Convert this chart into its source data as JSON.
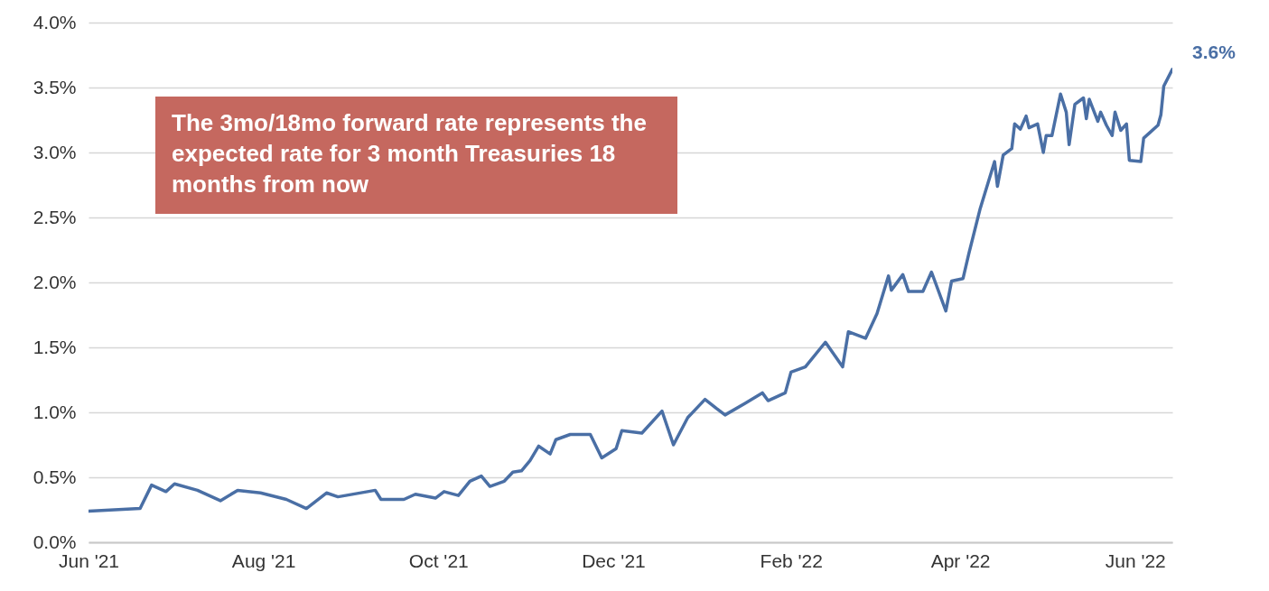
{
  "chart_data": {
    "type": "line",
    "annotations": [
      "The 3mo/18mo forward rate represents the expected rate for 3 month Treasuries 18 months from now",
      {
        "text": "3.6%",
        "x": "2022-06-14",
        "y": 3.64
      }
    ],
    "x": [
      "2021-06-01",
      "2021-06-19",
      "2021-06-23",
      "2021-06-28",
      "2021-07-01",
      "2021-07-09",
      "2021-07-17",
      "2021-07-23",
      "2021-07-31",
      "2021-08-09",
      "2021-08-16",
      "2021-08-23",
      "2021-08-27",
      "2021-09-09",
      "2021-09-11",
      "2021-09-19",
      "2021-09-23",
      "2021-09-30",
      "2021-10-03",
      "2021-10-08",
      "2021-10-12",
      "2021-10-16",
      "2021-10-19",
      "2021-10-24",
      "2021-10-27",
      "2021-10-30",
      "2021-11-02",
      "2021-11-05",
      "2021-11-09",
      "2021-11-11",
      "2021-11-16",
      "2021-11-23",
      "2021-11-27",
      "2021-12-02",
      "2021-12-04",
      "2021-12-11",
      "2021-12-18",
      "2021-12-22",
      "2021-12-27",
      "2022-01-02",
      "2022-01-06",
      "2022-01-09",
      "2022-01-16",
      "2022-01-22",
      "2022-01-24",
      "2022-01-30",
      "2022-02-01",
      "2022-02-06",
      "2022-02-13",
      "2022-02-19",
      "2022-02-21",
      "2022-02-27",
      "2022-03-03",
      "2022-03-07",
      "2022-03-08",
      "2022-03-12",
      "2022-03-14",
      "2022-03-19",
      "2022-03-22",
      "2022-03-27",
      "2022-03-29",
      "2022-04-02",
      "2022-04-04",
      "2022-04-08",
      "2022-04-13",
      "2022-04-14",
      "2022-04-16",
      "2022-04-19",
      "2022-04-20",
      "2022-04-22",
      "2022-04-24",
      "2022-04-25",
      "2022-04-28",
      "2022-04-30",
      "2022-05-01",
      "2022-05-03",
      "2022-05-06",
      "2022-05-08",
      "2022-05-09",
      "2022-05-11",
      "2022-05-14",
      "2022-05-15",
      "2022-05-16",
      "2022-05-19",
      "2022-05-20",
      "2022-05-22",
      "2022-05-24",
      "2022-05-25",
      "2022-05-27",
      "2022-05-29",
      "2022-05-30",
      "2022-06-03",
      "2022-06-04",
      "2022-06-06",
      "2022-06-09",
      "2022-06-10",
      "2022-06-11",
      "2022-06-14"
    ],
    "series": [
      {
        "color": "#4a6fa5",
        "values": [
          0.24,
          0.26,
          0.44,
          0.39,
          0.45,
          0.4,
          0.32,
          0.4,
          0.38,
          0.33,
          0.26,
          0.38,
          0.35,
          0.4,
          0.33,
          0.33,
          0.37,
          0.34,
          0.39,
          0.36,
          0.47,
          0.51,
          0.43,
          0.47,
          0.54,
          0.55,
          0.63,
          0.74,
          0.68,
          0.79,
          0.83,
          0.83,
          0.65,
          0.72,
          0.86,
          0.84,
          1.01,
          0.75,
          0.96,
          1.1,
          1.03,
          0.98,
          1.07,
          1.15,
          1.09,
          1.15,
          1.31,
          1.35,
          1.54,
          1.35,
          1.62,
          1.57,
          1.76,
          2.05,
          1.94,
          2.06,
          1.93,
          1.93,
          2.08,
          1.78,
          2.01,
          2.03,
          2.22,
          2.57,
          2.93,
          2.74,
          2.98,
          3.03,
          3.22,
          3.18,
          3.28,
          3.19,
          3.22,
          3.0,
          3.13,
          3.13,
          3.45,
          3.31,
          3.06,
          3.37,
          3.42,
          3.26,
          3.41,
          3.24,
          3.31,
          3.21,
          3.13,
          3.31,
          3.17,
          3.22,
          2.94,
          2.93,
          3.11,
          3.15,
          3.21,
          3.29,
          3.51,
          3.64
        ]
      }
    ],
    "xlim": [
      "2021-06-01",
      "2022-06-14"
    ],
    "xticks": [
      {
        "value": "2021-06-01",
        "label": "Jun '21"
      },
      {
        "value": "2021-08-01",
        "label": "Aug '21"
      },
      {
        "value": "2021-10-01",
        "label": "Oct '21"
      },
      {
        "value": "2021-12-01",
        "label": "Dec '21"
      },
      {
        "value": "2022-02-01",
        "label": "Feb '22"
      },
      {
        "value": "2022-04-01",
        "label": "Apr '22"
      },
      {
        "value": "2022-06-01",
        "label": "Jun '22"
      }
    ],
    "ylim": [
      0,
      4
    ],
    "yticks": [
      {
        "value": 0,
        "label": "0.0%"
      },
      {
        "value": 0.5,
        "label": "0.5%"
      },
      {
        "value": 1,
        "label": "1.0%"
      },
      {
        "value": 1.5,
        "label": "1.5%"
      },
      {
        "value": 2,
        "label": "2.0%"
      },
      {
        "value": 2.5,
        "label": "2.5%"
      },
      {
        "value": 3,
        "label": "3.0%"
      },
      {
        "value": 3.5,
        "label": "3.5%"
      },
      {
        "value": 4,
        "label": "4.0%"
      }
    ],
    "grid": "y",
    "marker": "none",
    "line_style": "solid"
  }
}
